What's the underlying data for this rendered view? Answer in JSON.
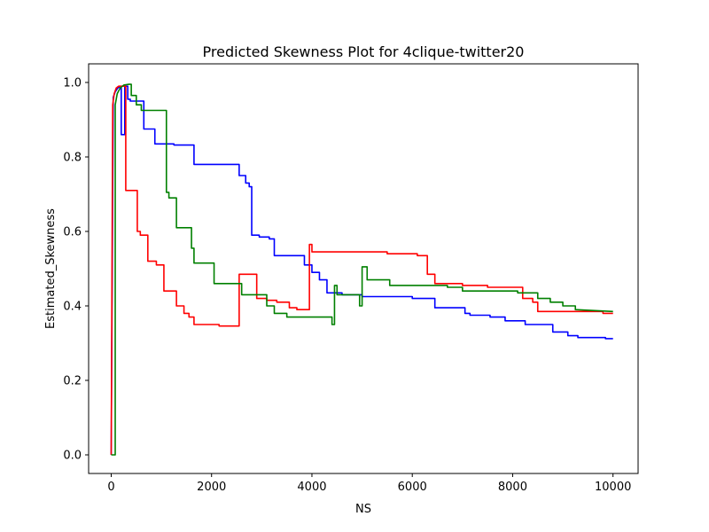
{
  "chart_data": {
    "type": "line",
    "title": "Predicted Skewness Plot for 4clique-twitter20",
    "xlabel": "NS",
    "ylabel": "Estimated_Skewness",
    "xlim": [
      -450,
      10500
    ],
    "ylim": [
      -0.05,
      1.05
    ],
    "xticks": [
      0,
      2000,
      4000,
      6000,
      8000,
      10000
    ],
    "xtick_labels": [
      "0",
      "2000",
      "4000",
      "6000",
      "8000",
      "10000"
    ],
    "yticks": [
      0.0,
      0.2,
      0.4,
      0.6,
      0.8,
      1.0
    ],
    "ytick_labels": [
      "0.0",
      "0.2",
      "0.4",
      "0.6",
      "0.8",
      "1.0"
    ],
    "grid": false,
    "legend": false,
    "series": [
      {
        "color": "#0000ff",
        "points": [
          [
            0,
            0.0
          ],
          [
            40,
            0.96
          ],
          [
            80,
            0.975
          ],
          [
            130,
            0.985
          ],
          [
            200,
            0.99
          ],
          [
            200,
            0.86
          ],
          [
            270,
            0.86
          ],
          [
            270,
            0.99
          ],
          [
            330,
            0.99
          ],
          [
            330,
            0.955
          ],
          [
            380,
            0.955
          ],
          [
            380,
            0.95
          ],
          [
            650,
            0.95
          ],
          [
            650,
            0.875
          ],
          [
            870,
            0.875
          ],
          [
            870,
            0.835
          ],
          [
            1250,
            0.835
          ],
          [
            1250,
            0.832
          ],
          [
            1650,
            0.832
          ],
          [
            1650,
            0.78
          ],
          [
            2550,
            0.78
          ],
          [
            2550,
            0.75
          ],
          [
            2680,
            0.75
          ],
          [
            2680,
            0.73
          ],
          [
            2750,
            0.73
          ],
          [
            2750,
            0.72
          ],
          [
            2800,
            0.72
          ],
          [
            2800,
            0.59
          ],
          [
            2950,
            0.59
          ],
          [
            2950,
            0.585
          ],
          [
            3150,
            0.585
          ],
          [
            3150,
            0.58
          ],
          [
            3250,
            0.58
          ],
          [
            3250,
            0.535
          ],
          [
            3850,
            0.535
          ],
          [
            3850,
            0.51
          ],
          [
            4000,
            0.51
          ],
          [
            4000,
            0.49
          ],
          [
            4150,
            0.49
          ],
          [
            4150,
            0.47
          ],
          [
            4300,
            0.47
          ],
          [
            4300,
            0.435
          ],
          [
            4600,
            0.435
          ],
          [
            4600,
            0.43
          ],
          [
            5000,
            0.43
          ],
          [
            5000,
            0.425
          ],
          [
            6000,
            0.425
          ],
          [
            6000,
            0.42
          ],
          [
            6450,
            0.42
          ],
          [
            6450,
            0.395
          ],
          [
            7050,
            0.395
          ],
          [
            7050,
            0.38
          ],
          [
            7150,
            0.38
          ],
          [
            7150,
            0.375
          ],
          [
            7550,
            0.375
          ],
          [
            7550,
            0.37
          ],
          [
            7850,
            0.37
          ],
          [
            7850,
            0.36
          ],
          [
            8250,
            0.36
          ],
          [
            8250,
            0.35
          ],
          [
            8800,
            0.35
          ],
          [
            8800,
            0.33
          ],
          [
            9100,
            0.33
          ],
          [
            9100,
            0.32
          ],
          [
            9300,
            0.32
          ],
          [
            9300,
            0.315
          ],
          [
            9850,
            0.315
          ],
          [
            9850,
            0.312
          ],
          [
            10000,
            0.312
          ]
        ]
      },
      {
        "color": "#ff0000",
        "points": [
          [
            0,
            0.0
          ],
          [
            30,
            0.94
          ],
          [
            60,
            0.97
          ],
          [
            100,
            0.985
          ],
          [
            150,
            0.99
          ],
          [
            250,
            0.99
          ],
          [
            290,
            0.99
          ],
          [
            290,
            0.71
          ],
          [
            520,
            0.71
          ],
          [
            520,
            0.6
          ],
          [
            580,
            0.6
          ],
          [
            580,
            0.59
          ],
          [
            730,
            0.59
          ],
          [
            730,
            0.52
          ],
          [
            900,
            0.52
          ],
          [
            900,
            0.51
          ],
          [
            1050,
            0.51
          ],
          [
            1050,
            0.44
          ],
          [
            1300,
            0.44
          ],
          [
            1300,
            0.4
          ],
          [
            1450,
            0.4
          ],
          [
            1450,
            0.38
          ],
          [
            1550,
            0.38
          ],
          [
            1550,
            0.37
          ],
          [
            1650,
            0.37
          ],
          [
            1650,
            0.35
          ],
          [
            2150,
            0.35
          ],
          [
            2150,
            0.346
          ],
          [
            2550,
            0.346
          ],
          [
            2550,
            0.485
          ],
          [
            2900,
            0.485
          ],
          [
            2900,
            0.42
          ],
          [
            3100,
            0.42
          ],
          [
            3100,
            0.415
          ],
          [
            3300,
            0.415
          ],
          [
            3300,
            0.41
          ],
          [
            3550,
            0.41
          ],
          [
            3550,
            0.395
          ],
          [
            3700,
            0.395
          ],
          [
            3700,
            0.39
          ],
          [
            3950,
            0.39
          ],
          [
            3950,
            0.565
          ],
          [
            4000,
            0.565
          ],
          [
            4000,
            0.545
          ],
          [
            5500,
            0.545
          ],
          [
            5500,
            0.54
          ],
          [
            6100,
            0.54
          ],
          [
            6100,
            0.535
          ],
          [
            6300,
            0.535
          ],
          [
            6300,
            0.485
          ],
          [
            6450,
            0.485
          ],
          [
            6450,
            0.46
          ],
          [
            7000,
            0.46
          ],
          [
            7000,
            0.455
          ],
          [
            7500,
            0.455
          ],
          [
            7500,
            0.45
          ],
          [
            8200,
            0.45
          ],
          [
            8200,
            0.42
          ],
          [
            8400,
            0.42
          ],
          [
            8400,
            0.41
          ],
          [
            8500,
            0.41
          ],
          [
            8500,
            0.385
          ],
          [
            9800,
            0.385
          ],
          [
            9800,
            0.38
          ],
          [
            10000,
            0.38
          ]
        ]
      },
      {
        "color": "#008000",
        "points": [
          [
            0,
            0.0
          ],
          [
            80,
            0.0
          ],
          [
            80,
            0.94
          ],
          [
            120,
            0.97
          ],
          [
            180,
            0.985
          ],
          [
            250,
            0.993
          ],
          [
            350,
            0.995
          ],
          [
            400,
            0.995
          ],
          [
            400,
            0.965
          ],
          [
            500,
            0.965
          ],
          [
            500,
            0.94
          ],
          [
            600,
            0.94
          ],
          [
            600,
            0.925
          ],
          [
            1100,
            0.925
          ],
          [
            1100,
            0.705
          ],
          [
            1150,
            0.705
          ],
          [
            1150,
            0.69
          ],
          [
            1300,
            0.69
          ],
          [
            1300,
            0.61
          ],
          [
            1600,
            0.61
          ],
          [
            1600,
            0.555
          ],
          [
            1650,
            0.555
          ],
          [
            1650,
            0.515
          ],
          [
            2050,
            0.515
          ],
          [
            2050,
            0.46
          ],
          [
            2600,
            0.46
          ],
          [
            2600,
            0.43
          ],
          [
            3100,
            0.43
          ],
          [
            3100,
            0.4
          ],
          [
            3250,
            0.4
          ],
          [
            3250,
            0.38
          ],
          [
            3500,
            0.38
          ],
          [
            3500,
            0.37
          ],
          [
            4400,
            0.37
          ],
          [
            4400,
            0.35
          ],
          [
            4450,
            0.35
          ],
          [
            4450,
            0.455
          ],
          [
            4500,
            0.455
          ],
          [
            4500,
            0.43
          ],
          [
            4950,
            0.43
          ],
          [
            4950,
            0.4
          ],
          [
            5000,
            0.4
          ],
          [
            5000,
            0.505
          ],
          [
            5100,
            0.505
          ],
          [
            5100,
            0.47
          ],
          [
            5550,
            0.47
          ],
          [
            5550,
            0.455
          ],
          [
            6700,
            0.455
          ],
          [
            6700,
            0.45
          ],
          [
            7000,
            0.45
          ],
          [
            7000,
            0.44
          ],
          [
            8100,
            0.44
          ],
          [
            8100,
            0.435
          ],
          [
            8500,
            0.435
          ],
          [
            8500,
            0.42
          ],
          [
            8750,
            0.42
          ],
          [
            8750,
            0.41
          ],
          [
            9000,
            0.41
          ],
          [
            9000,
            0.4
          ],
          [
            9250,
            0.4
          ],
          [
            9250,
            0.39
          ],
          [
            10000,
            0.385
          ]
        ]
      }
    ]
  }
}
